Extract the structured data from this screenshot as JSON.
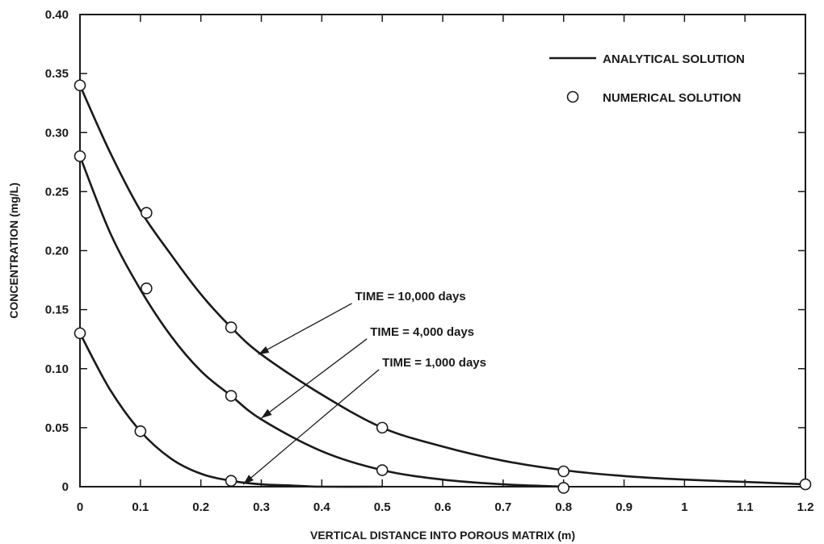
{
  "chart_data": {
    "type": "line",
    "xlabel": "VERTICAL DISTANCE INTO POROUS MATRIX (m)",
    "ylabel": "CONCENTRATION (mg/L)",
    "xlim": [
      0,
      1.2
    ],
    "ylim": [
      0,
      0.4
    ],
    "x_ticks": [
      0,
      0.1,
      0.2,
      0.3,
      0.4,
      0.5,
      0.6,
      0.7,
      0.8,
      0.9,
      1,
      1.1,
      1.2
    ],
    "x_tick_labels": [
      "0",
      "0.1",
      "0.2",
      "0.3",
      "0.4",
      "0.5",
      "0.6",
      "0.7",
      "0.8",
      "0.9",
      "1",
      "1.1",
      "1.2"
    ],
    "y_ticks": [
      0,
      0.05,
      0.1,
      0.15,
      0.2,
      0.25,
      0.3,
      0.35,
      0.4
    ],
    "y_tick_labels": [
      "0",
      "0.05",
      "0.10",
      "0.15",
      "0.20",
      "0.25",
      "0.30",
      "0.35",
      "0.40"
    ],
    "grid": false,
    "legend": {
      "placement": "top-right",
      "entries": [
        {
          "label": "ANALYTICAL SOLUTION",
          "style": "line"
        },
        {
          "label": "NUMERICAL SOLUTION",
          "style": "open-circle"
        }
      ]
    },
    "series": [
      {
        "label": "TIME = 10,000 days",
        "analytical": {
          "x": [
            0,
            0.05,
            0.1,
            0.15,
            0.2,
            0.25,
            0.3,
            0.4,
            0.5,
            0.6,
            0.7,
            0.8,
            0.9,
            1.0,
            1.1,
            1.2
          ],
          "y": [
            0.34,
            0.283,
            0.234,
            0.197,
            0.163,
            0.135,
            0.112,
            0.078,
            0.05,
            0.034,
            0.022,
            0.014,
            0.009,
            0.006,
            0.004,
            0.002
          ]
        },
        "numerical": {
          "x": [
            0,
            0.11,
            0.25,
            0.5,
            0.8,
            1.2
          ],
          "y": [
            0.34,
            0.232,
            0.135,
            0.05,
            0.013,
            0.002
          ]
        }
      },
      {
        "label": "TIME = 4,000 days",
        "analytical": {
          "x": [
            0,
            0.05,
            0.1,
            0.15,
            0.2,
            0.25,
            0.3,
            0.4,
            0.5,
            0.6,
            0.7,
            0.8
          ],
          "y": [
            0.28,
            0.215,
            0.167,
            0.128,
            0.098,
            0.077,
            0.057,
            0.03,
            0.014,
            0.006,
            0.002,
            0.0
          ]
        },
        "numerical": {
          "x": [
            0,
            0.11,
            0.25,
            0.5,
            0.8
          ],
          "y": [
            0.28,
            0.168,
            0.077,
            0.014,
            -0.001
          ]
        }
      },
      {
        "label": "TIME = 1,000 days",
        "analytical": {
          "x": [
            0,
            0.05,
            0.1,
            0.15,
            0.2,
            0.25,
            0.3,
            0.35,
            0.4,
            0.5
          ],
          "y": [
            0.13,
            0.082,
            0.047,
            0.024,
            0.011,
            0.005,
            0.002,
            0.001,
            0.0,
            0.0
          ]
        },
        "numerical": {
          "x": [
            0,
            0.1,
            0.25
          ],
          "y": [
            0.13,
            0.047,
            0.005
          ]
        }
      }
    ],
    "annotations": [
      {
        "text": "TIME = 10,000 days",
        "series": 0,
        "text_at": [
          0.455,
          0.158
        ],
        "arrow_to": [
          0.295,
          0.112
        ]
      },
      {
        "text": "TIME = 4,000 days",
        "series": 1,
        "text_at": [
          0.48,
          0.128
        ],
        "arrow_to": [
          0.3,
          0.058
        ]
      },
      {
        "text": "TIME = 1,000 days",
        "series": 2,
        "text_at": [
          0.5,
          0.102
        ],
        "arrow_to": [
          0.27,
          0.002
        ]
      }
    ],
    "colors": {
      "ink": "#1a1a1a",
      "background": "#ffffff"
    }
  }
}
